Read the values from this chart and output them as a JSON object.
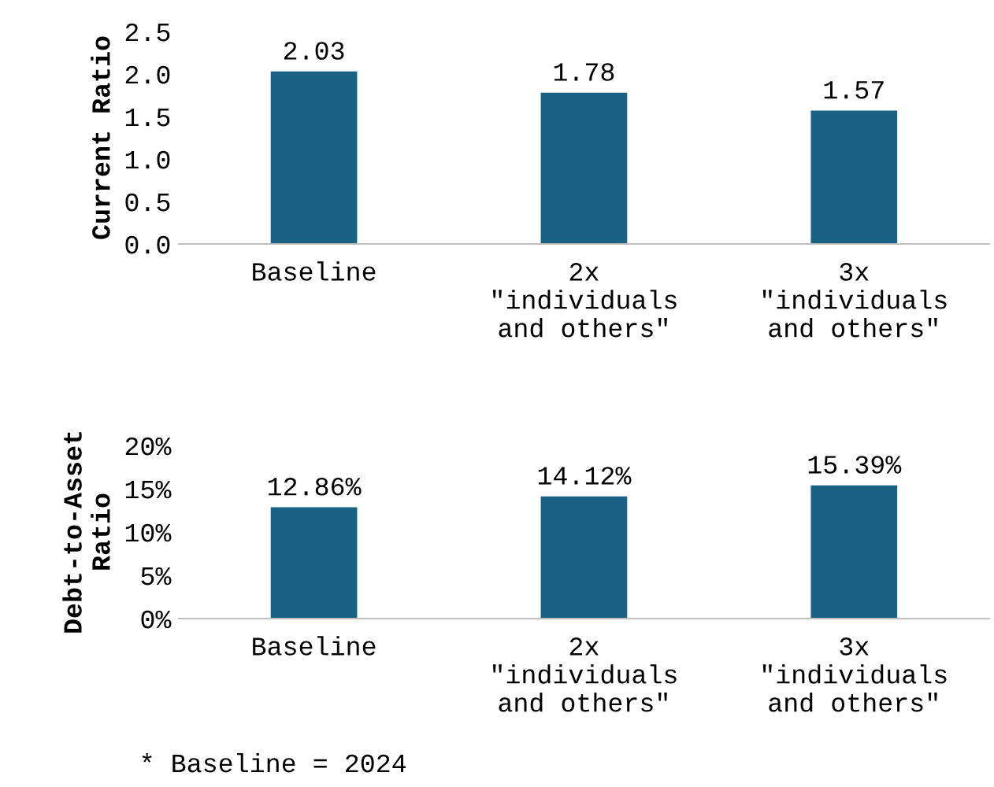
{
  "chart_data": [
    {
      "type": "bar",
      "ylabel": "Current Ratio",
      "categories": [
        "Baseline",
        "2x\n\"individuals\nand others\"",
        "3x\n\"individuals\nand others\""
      ],
      "series": [
        {
          "color": "#1a6285",
          "values": [
            2.03,
            1.78,
            1.57
          ]
        }
      ],
      "ylim": [
        0,
        2.5
      ],
      "yticks": [
        {
          "value": 0,
          "label": "0.0"
        },
        {
          "value": 0.5,
          "label": "0.5"
        },
        {
          "value": 1,
          "label": "1.0"
        },
        {
          "value": 1.5,
          "label": "1.5"
        },
        {
          "value": 2,
          "label": "2.0"
        },
        {
          "value": 2.5,
          "label": "2.5"
        }
      ],
      "data_labels": true,
      "grid": false,
      "legend": false
    },
    {
      "type": "bar",
      "ylabel": "Debt-to-Asset\nRatio",
      "categories": [
        "Baseline",
        "2x\n\"individuals\nand others\"",
        "3x\n\"individuals\nand others\""
      ],
      "series": [
        {
          "color": "#1a6285",
          "values": [
            12.86,
            14.12,
            15.39
          ],
          "value_labels": [
            "12.86%",
            "14.12%",
            "15.39%"
          ]
        }
      ],
      "ylim": [
        0,
        20
      ],
      "yticks": [
        {
          "value": 0,
          "label": "0%"
        },
        {
          "value": 5,
          "label": "5%"
        },
        {
          "value": 10,
          "label": "10%"
        },
        {
          "value": 15,
          "label": "15%"
        },
        {
          "value": 20,
          "label": "20%"
        }
      ],
      "grid": false,
      "legend": false,
      "annotations": [
        "* Baseline = 2024"
      ]
    }
  ]
}
